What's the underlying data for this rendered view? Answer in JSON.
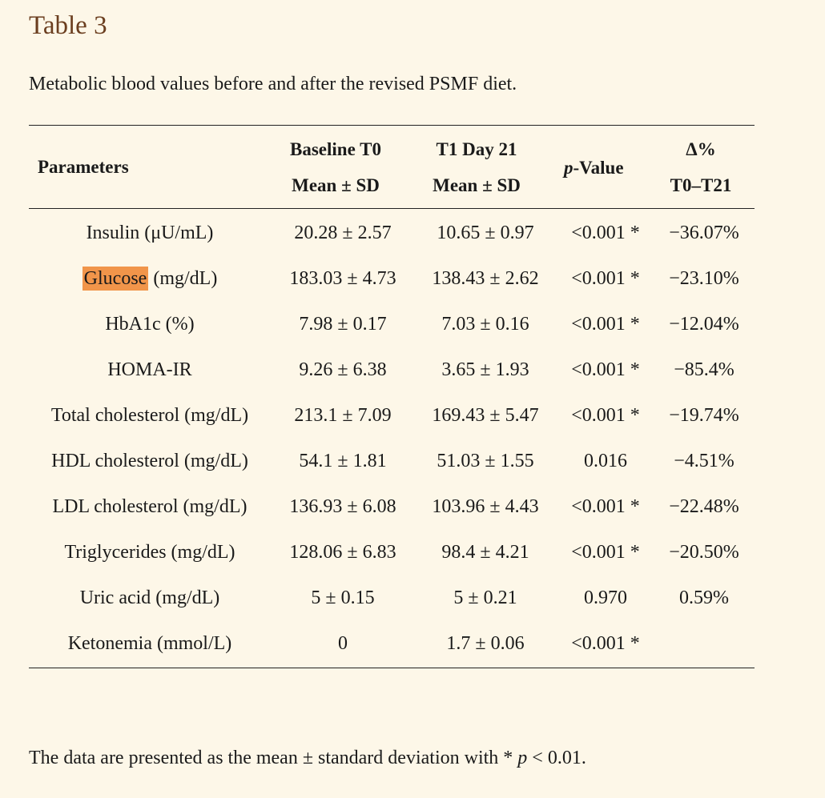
{
  "title": "Table 3",
  "caption": "Metabolic blood values before and after the revised PSMF diet.",
  "headers": {
    "parameters": "Parameters",
    "baseline_line1": "Baseline T0",
    "baseline_line2": "Mean ± SD",
    "t1_line1": "T1 Day 21",
    "t1_line2": "Mean ± SD",
    "pvalue_italic": "p",
    "pvalue_rest": "-Value",
    "delta_line1": "Δ%",
    "delta_line2": "T0–T21"
  },
  "rows": [
    {
      "param": "Insulin (μU/mL)",
      "baseline": "20.28 ± 2.57",
      "t1": "10.65 ± 0.97",
      "p": "<0.001 *",
      "delta": "−36.07%"
    },
    {
      "param_highlight": "Glucose",
      "param_rest": " (mg/dL)",
      "baseline": "183.03 ± 4.73",
      "t1": "138.43 ± 2.62",
      "p": "<0.001 *",
      "delta": "−23.10%"
    },
    {
      "param": "HbA1c (%)",
      "baseline": "7.98 ± 0.17",
      "t1": "7.03 ± 0.16",
      "p": "<0.001 *",
      "delta": "−12.04%"
    },
    {
      "param": "HOMA-IR",
      "baseline": "9.26 ± 6.38",
      "t1": "3.65 ± 1.93",
      "p": "<0.001 *",
      "delta": "−85.4%"
    },
    {
      "param": "Total cholesterol (mg/dL)",
      "baseline": "213.1 ± 7.09",
      "t1": "169.43 ± 5.47",
      "p": "<0.001 *",
      "delta": "−19.74%"
    },
    {
      "param": "HDL cholesterol (mg/dL)",
      "baseline": "54.1 ± 1.81",
      "t1": "51.03 ± 1.55",
      "p": "0.016",
      "delta": "−4.51%"
    },
    {
      "param": "LDL cholesterol (mg/dL)",
      "baseline": "136.93 ± 6.08",
      "t1": "103.96 ± 4.43",
      "p": "<0.001 *",
      "delta": "−22.48%"
    },
    {
      "param": "Triglycerides (mg/dL)",
      "baseline": "128.06 ± 6.83",
      "t1": "98.4 ± 4.21",
      "p": "<0.001 *",
      "delta": "−20.50%"
    },
    {
      "param": "Uric acid (mg/dL)",
      "baseline": "5 ± 0.15",
      "t1": "5 ± 0.21",
      "p": "0.970",
      "delta": "0.59%"
    },
    {
      "param": "Ketonemia (mmol/L)",
      "baseline": "0",
      "t1": "1.7 ± 0.06",
      "p": "<0.001 *",
      "delta": ""
    }
  ],
  "footnote": {
    "before": "The data are presented as the mean ± standard deviation with * ",
    "italic": "p",
    "after": " < 0.01."
  },
  "colors": {
    "background": "#fdf7e8",
    "title": "#6b3e1f",
    "highlight": "#f1954a"
  }
}
